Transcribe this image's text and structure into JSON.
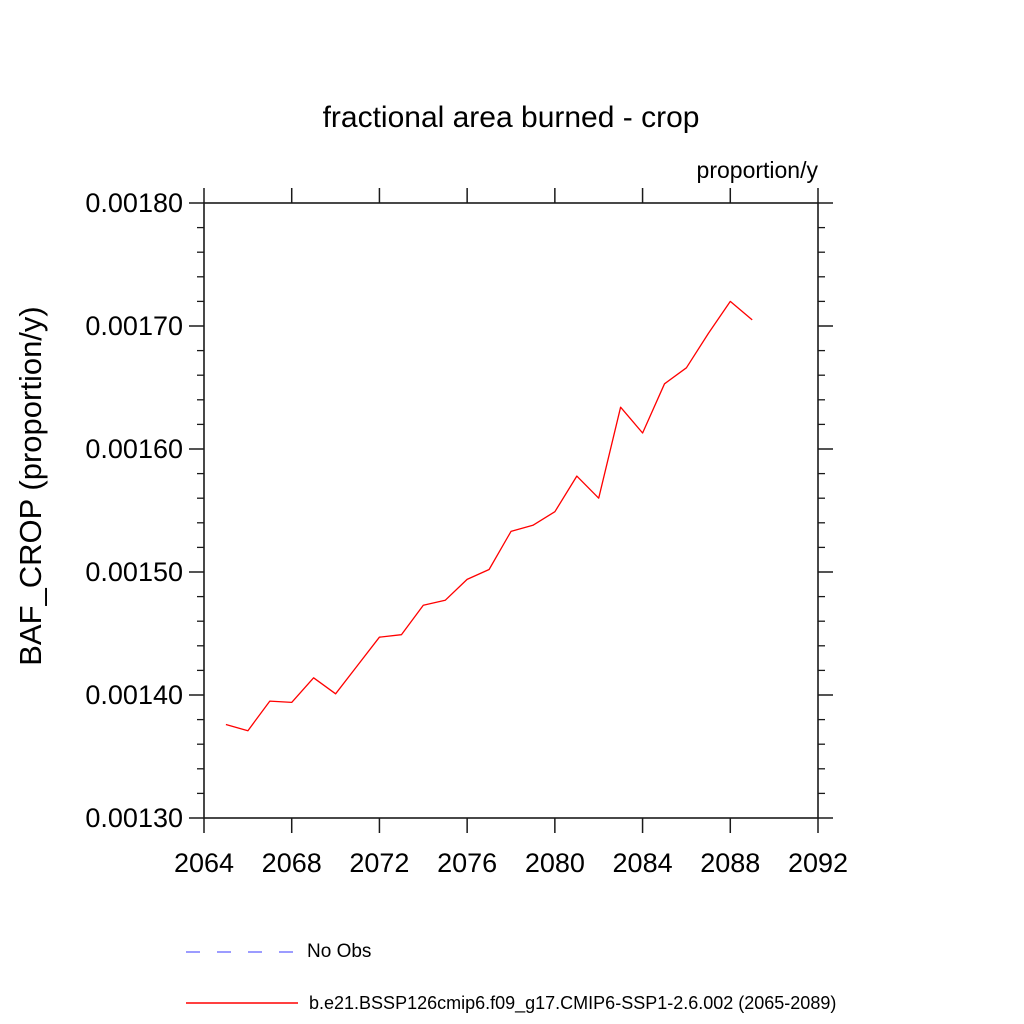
{
  "chart_data": {
    "type": "line",
    "title": "fractional area burned - crop",
    "units_label": "proportion/y",
    "ylabel": "BAF_CROP (proportion/y)",
    "xlabel": "",
    "xlim": [
      2064,
      2092
    ],
    "ylim": [
      0.0013,
      0.0018
    ],
    "x_major_ticks": [
      2064,
      2068,
      2072,
      2076,
      2080,
      2084,
      2088,
      2092
    ],
    "y_major_ticks": {
      "values": [
        0.0013,
        0.0014,
        0.0015,
        0.0016,
        0.0017,
        0.0018
      ],
      "labels": [
        "0.00130",
        "0.00140",
        "0.00150",
        "0.00160",
        "0.00170",
        "0.00180"
      ]
    },
    "y_minor_step": 2e-05,
    "grid": false,
    "axis_color": "#1a1a1a",
    "legend_position": "below-left",
    "series": [
      {
        "name": "No Obs",
        "color": "#7b7bff",
        "line_style": "dashed",
        "x": [],
        "values": []
      },
      {
        "name": "b.e21.BSSP126cmip6.f09_g17.CMIP6-SSP1-2.6.002 (2065-2089)",
        "color": "#ff0000",
        "line_style": "solid",
        "x": [
          2065,
          2066,
          2067,
          2068,
          2069,
          2070,
          2071,
          2072,
          2073,
          2074,
          2075,
          2076,
          2077,
          2078,
          2079,
          2080,
          2081,
          2082,
          2083,
          2084,
          2085,
          2086,
          2087,
          2088,
          2089
        ],
        "values": [
          0.001376,
          0.001371,
          0.001395,
          0.001394,
          0.001414,
          0.001401,
          0.001424,
          0.001447,
          0.001449,
          0.001473,
          0.001477,
          0.001494,
          0.001502,
          0.001533,
          0.001538,
          0.001549,
          0.001578,
          0.00156,
          0.001634,
          0.001613,
          0.001653,
          0.001666,
          0.001694,
          0.00172,
          0.001705
        ]
      }
    ]
  }
}
